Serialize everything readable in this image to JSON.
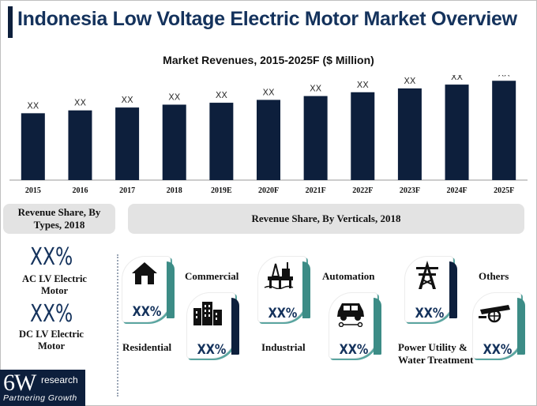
{
  "header": {
    "title": "Indonesia Low Voltage Electric Motor Market Overview"
  },
  "chart_data": {
    "type": "bar",
    "title": "Market Revenues, 2015-2025F ($ Million)",
    "categories": [
      "2015",
      "2016",
      "2017",
      "2018",
      "2019E",
      "2020F",
      "2021F",
      "2022F",
      "2023F",
      "2024F",
      "2025F"
    ],
    "values": [
      70,
      73,
      76,
      79,
      81,
      84,
      88,
      92,
      96,
      100,
      104
    ],
    "data_labels": [
      "XX",
      "XX",
      "XX",
      "XX",
      "XX",
      "XX",
      "XX",
      "XX",
      "XX",
      "XX",
      "XX"
    ],
    "xlabel": "",
    "ylabel": "",
    "ylim": [
      0,
      110
    ],
    "grid": false,
    "bar_color": "#0d1f3c"
  },
  "types_section": {
    "heading": "Revenue Share, By Types, 2018",
    "items": [
      {
        "value": "XX%",
        "label": "AC LV Electric Motor"
      },
      {
        "value": "XX%",
        "label": "DC LV Electric Motor"
      }
    ]
  },
  "verticals_section": {
    "heading": "Revenue Share, By Verticals, 2018",
    "items": [
      {
        "label": "Residential",
        "value": "XX%",
        "icon": "house-icon"
      },
      {
        "label": "Commercial",
        "value": "XX%",
        "icon": "buildings-icon"
      },
      {
        "label": "Industrial",
        "value": "XX%",
        "icon": "oil-rig-icon"
      },
      {
        "label": "Automation",
        "value": "XX%",
        "icon": "car-icon"
      },
      {
        "label": "Power Utility & Water Treatment",
        "value": "XX%",
        "icon": "power-tower-icon"
      },
      {
        "label": "Others",
        "value": "XX%",
        "icon": "cannon-icon"
      }
    ],
    "accent_teal": "#3c8c86",
    "accent_navy": "#0d1f3c"
  },
  "logo": {
    "main": "6W",
    "sub": "research",
    "tagline": "Partnering Growth"
  }
}
